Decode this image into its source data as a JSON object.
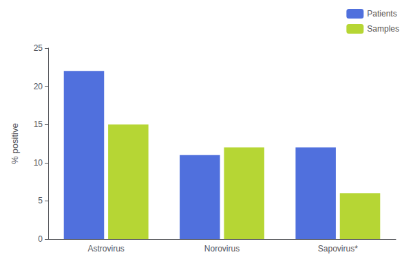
{
  "chart_data": {
    "type": "bar",
    "categories": [
      "Astrovirus",
      "Norovirus",
      "Sapovirus*"
    ],
    "series": [
      {
        "name": "Patients",
        "values": [
          22,
          11,
          12
        ]
      },
      {
        "name": "Samples",
        "values": [
          15,
          12,
          6
        ]
      }
    ],
    "ylabel": "% positive",
    "ylim": [
      0,
      25
    ],
    "yticks": [
      0,
      5,
      10,
      15,
      20,
      25
    ],
    "grid": false,
    "legend": "upper right"
  }
}
